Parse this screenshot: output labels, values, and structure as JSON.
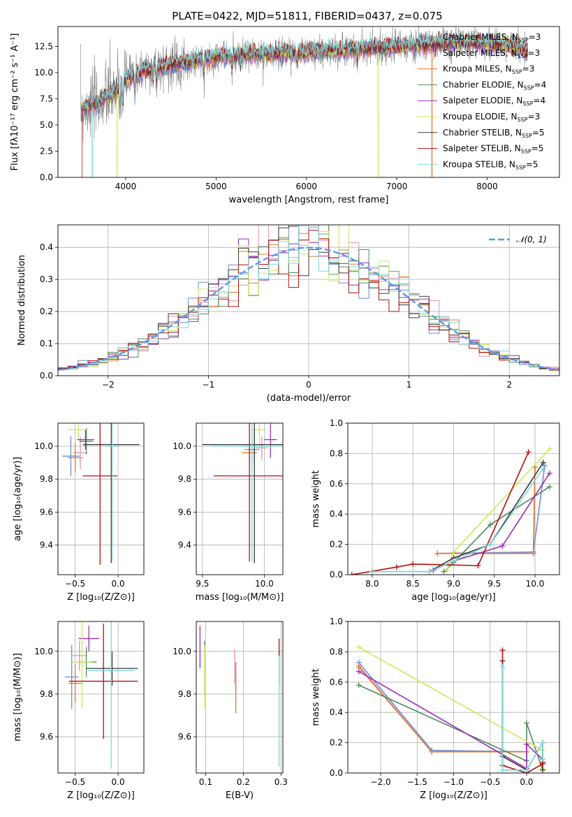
{
  "figure_title": "PLATE=0422, MJD=51811, FIBERID=0437, z=0.075",
  "colors": {
    "chabrier_miles": "#6a8ed8",
    "salpeter_miles": "#e58fb2",
    "kroupa_miles": "#e07b2c",
    "chabrier_elodie": "#4f8a5e",
    "salpeter_elodie": "#9a2fb8",
    "kroupa_elodie": "#cfe85a",
    "chabrier_stelib": "#3a3a3a",
    "salpeter_stelib": "#b01010",
    "kroupa_stelib": "#7fd8dc",
    "data": "#808080",
    "gaussian": "#6495ed",
    "grid": "#b0b0b0"
  },
  "chart_data": [
    {
      "id": "spectrum",
      "type": "line",
      "title": "PLATE=0422, MJD=51811, FIBERID=0437, z=0.075",
      "xlabel": "wavelength [Angstrom, rest frame]",
      "ylabel": "Flux [fλ10⁻¹⁷ erg cm⁻² s⁻¹ A⁻¹]",
      "xlim": [
        3250,
        8800
      ],
      "ylim": [
        0,
        14.4
      ],
      "xticks": [
        4000,
        5000,
        6000,
        7000,
        8000
      ],
      "yticks": [
        0.0,
        2.5,
        5.0,
        7.5,
        10.0,
        12.5
      ],
      "grid": false,
      "legend_position": "right",
      "continuum": {
        "x": [
          3500,
          3700,
          3900,
          4000,
          4200,
          4500,
          4800,
          5000,
          5300,
          5600,
          6000,
          6300,
          6600,
          6900,
          7200,
          7400,
          7700,
          8000,
          8300,
          8450
        ],
        "y": [
          6.5,
          7.2,
          8.3,
          9.3,
          10.2,
          10.8,
          11.2,
          11.5,
          11.7,
          11.8,
          12.0,
          12.1,
          12.3,
          12.4,
          12.6,
          12.7,
          12.9,
          12.8,
          12.5,
          12.0
        ]
      },
      "legend": [
        {
          "label": "Chabrier MILES, N",
          "sub": "SSP",
          "suffix": "=3",
          "color": "#6a8ed8"
        },
        {
          "label": "Salpeter MILES, N",
          "sub": "SSP",
          "suffix": "=3",
          "color": "#e58fb2"
        },
        {
          "label": "Kroupa MILES, N",
          "sub": "SSP",
          "suffix": "=3",
          "color": "#e07b2c"
        },
        {
          "label": "Chabrier ELODIE, N",
          "sub": "SSP",
          "suffix": "=4",
          "color": "#4f8a5e"
        },
        {
          "label": "Salpeter ELODIE, N",
          "sub": "SSP",
          "suffix": "=4",
          "color": "#9a2fb8"
        },
        {
          "label": "Kroupa ELODIE, N",
          "sub": "SSP",
          "suffix": "=3",
          "color": "#cfe85a"
        },
        {
          "label": "Chabrier STELIB, N",
          "sub": "SSP",
          "suffix": "=5",
          "color": "#3a3a3a"
        },
        {
          "label": "Salpeter STELIB, N",
          "sub": "SSP",
          "suffix": "=5",
          "color": "#b01010"
        },
        {
          "label": "Kroupa STELIB, N",
          "sub": "SSP",
          "suffix": "=5",
          "color": "#7fd8dc"
        }
      ]
    },
    {
      "id": "residuals",
      "type": "line",
      "xlabel": "(data-model)/error",
      "ylabel": "Normed distribution",
      "xlim": [
        -2.5,
        2.5
      ],
      "ylim": [
        0,
        0.47
      ],
      "xticks": [
        -2,
        -1,
        0,
        1,
        2
      ],
      "yticks": [
        0.0,
        0.1,
        0.2,
        0.3,
        0.4
      ],
      "grid": true,
      "legend_position": "top-right",
      "legend": [
        {
          "label": "𝒩(0, 1)",
          "color": "#6495ed"
        }
      ],
      "gaussian": {
        "mean": 0,
        "sigma": 1
      },
      "histogram_bin_width": 0.1
    },
    {
      "id": "age_vs_Z",
      "type": "scatter",
      "xlabel": "Z [log₁₀(Z/Z⊙)]",
      "ylabel": "age  [log₁₀(age/yr)]",
      "xlim": [
        -0.7,
        0.3
      ],
      "ylim": [
        9.22,
        10.14
      ],
      "xticks": [
        -0.5,
        0.0
      ],
      "yticks": [
        9.4,
        9.6,
        9.8,
        10.0
      ],
      "grid": true,
      "points": [
        {
          "model": "Chabrier MILES",
          "x": -0.55,
          "y": 9.94,
          "xerr": 0.1,
          "yerr": 0.12
        },
        {
          "model": "Salpeter MILES",
          "x": -0.44,
          "y": 9.96,
          "xerr": 0.08,
          "yerr": 0.1
        },
        {
          "model": "Kroupa MILES",
          "x": -0.5,
          "y": 9.93,
          "xerr": 0.09,
          "yerr": 0.09
        },
        {
          "model": "Chabrier ELODIE",
          "x": -0.37,
          "y": 10.03,
          "xerr": 0.08,
          "yerr": 0.08
        },
        {
          "model": "Salpeter ELODIE",
          "x": -0.38,
          "y": 10.04,
          "xerr": 0.1,
          "yerr": 0.06
        },
        {
          "model": "Kroupa ELODIE",
          "x": -0.46,
          "y": 10.1,
          "xerr": 0.12,
          "yerr": 0.05
        },
        {
          "model": "Chabrier STELIB",
          "x": -0.08,
          "y": 10.01,
          "xerr": 0.33,
          "yerr": 0.72
        },
        {
          "model": "Salpeter STELIB",
          "x": -0.21,
          "y": 9.82,
          "xerr": 0.2,
          "yerr": 0.54
        },
        {
          "model": "Kroupa STELIB",
          "x": -0.07,
          "y": 10.0,
          "xerr": 0.08,
          "yerr": 0.7
        }
      ]
    },
    {
      "id": "age_vs_mass",
      "type": "scatter",
      "xlabel": "mass [log₁₀(M/M⊙)]",
      "ylabel": "",
      "xlim": [
        9.45,
        10.15
      ],
      "ylim": [
        9.22,
        10.14
      ],
      "xticks": [
        9.5,
        10.0
      ],
      "yticks": [
        9.4,
        9.6,
        9.8,
        10.0
      ],
      "grid": true,
      "points": [
        {
          "model": "Chabrier MILES",
          "x": 9.9,
          "y": 9.98,
          "xerr": 0.06,
          "yerr": 0.08
        },
        {
          "model": "Salpeter MILES",
          "x": 9.98,
          "y": 9.99,
          "xerr": 0.05,
          "yerr": 0.07
        },
        {
          "model": "Kroupa MILES",
          "x": 9.88,
          "y": 9.96,
          "xerr": 0.06,
          "yerr": 0.06
        },
        {
          "model": "Chabrier ELODIE",
          "x": 9.92,
          "y": 10.0,
          "xerr": 0.08,
          "yerr": 0.09
        },
        {
          "model": "Salpeter ELODIE",
          "x": 10.05,
          "y": 10.04,
          "xerr": 0.05,
          "yerr": 0.11
        },
        {
          "model": "Kroupa ELODIE",
          "x": 9.96,
          "y": 10.1,
          "xerr": 0.06,
          "yerr": 0.1
        },
        {
          "model": "Chabrier STELIB",
          "x": 9.92,
          "y": 10.01,
          "xerr": 0.42,
          "yerr": 0.72
        },
        {
          "model": "Salpeter STELIB",
          "x": 9.88,
          "y": 9.82,
          "xerr": 0.29,
          "yerr": 0.52
        },
        {
          "model": "Kroupa STELIB",
          "x": 9.9,
          "y": 10.0,
          "xerr": 0.32,
          "yerr": 0.7
        }
      ]
    },
    {
      "id": "weight_vs_age",
      "type": "line",
      "xlabel": "age  [log₁₀(age/yr)]",
      "ylabel": "mass weight",
      "xlim": [
        7.7,
        10.3
      ],
      "ylim": [
        0,
        1.0
      ],
      "xticks": [
        8.0,
        8.5,
        9.0,
        9.5,
        10.0
      ],
      "yticks": [
        0.0,
        0.2,
        0.4,
        0.6,
        0.8,
        1.0
      ],
      "grid": true,
      "series": [
        {
          "model": "Chabrier MILES",
          "x": [
            8.8,
            9.98,
            10.12
          ],
          "y": [
            0.14,
            0.15,
            0.72
          ]
        },
        {
          "model": "Salpeter MILES",
          "x": [
            8.8,
            9.98,
            10.0
          ],
          "y": [
            0.14,
            0.14,
            0.71
          ]
        },
        {
          "model": "Kroupa MILES",
          "x": [
            8.8,
            9.98,
            10.0
          ],
          "y": [
            0.14,
            0.14,
            0.71
          ]
        },
        {
          "model": "Chabrier ELODIE",
          "x": [
            8.88,
            9.0,
            9.45,
            10.18
          ],
          "y": [
            0.02,
            0.08,
            0.33,
            0.58
          ]
        },
        {
          "model": "Salpeter ELODIE",
          "x": [
            8.75,
            9.0,
            9.6,
            10.18
          ],
          "y": [
            0.03,
            0.09,
            0.19,
            0.67
          ]
        },
        {
          "model": "Kroupa ELODIE",
          "x": [
            8.92,
            9.0,
            10.18
          ],
          "y": [
            0.03,
            0.15,
            0.83
          ]
        },
        {
          "model": "Chabrier STELIB",
          "x": [
            8.0,
            8.7,
            9.0,
            9.45,
            10.1
          ],
          "y": [
            0.02,
            0.02,
            0.11,
            0.2,
            0.74
          ]
        },
        {
          "model": "Salpeter STELIB",
          "x": [
            7.75,
            8.3,
            8.5,
            9.3,
            9.92
          ],
          "y": [
            0.0,
            0.05,
            0.07,
            0.06,
            0.81
          ]
        },
        {
          "model": "Kroupa STELIB",
          "x": [
            8.0,
            8.7,
            9.0,
            9.45,
            10.1
          ],
          "y": [
            0.02,
            0.02,
            0.09,
            0.2,
            0.7
          ]
        }
      ]
    },
    {
      "id": "mass_vs_Z",
      "type": "scatter",
      "xlabel": "Z [log₁₀(Z/Z⊙)]",
      "ylabel": "mass [log₁₀(M/M⊙)]",
      "xlim": [
        -0.7,
        0.3
      ],
      "ylim": [
        9.43,
        10.14
      ],
      "xticks": [
        -0.5,
        0.0
      ],
      "yticks": [
        9.6,
        9.8,
        10.0
      ],
      "grid": true,
      "points": [
        {
          "model": "Chabrier MILES",
          "x": -0.54,
          "y": 9.88,
          "xerr": 0.08,
          "yerr": 0.15
        },
        {
          "model": "Salpeter MILES",
          "x": -0.45,
          "y": 9.98,
          "xerr": 0.08,
          "yerr": 0.07
        },
        {
          "model": "Kroupa MILES",
          "x": -0.5,
          "y": 9.85,
          "xerr": 0.08,
          "yerr": 0.09
        },
        {
          "model": "Chabrier ELODIE",
          "x": -0.37,
          "y": 9.95,
          "xerr": 0.12,
          "yerr": 0.07
        },
        {
          "model": "Salpeter ELODIE",
          "x": -0.34,
          "y": 10.06,
          "xerr": 0.12,
          "yerr": 0.06
        },
        {
          "model": "Kroupa ELODIE",
          "x": -0.42,
          "y": 9.95,
          "xerr": 0.12,
          "yerr": 0.22
        },
        {
          "model": "Chabrier STELIB",
          "x": -0.07,
          "y": 9.92,
          "xerr": 0.3,
          "yerr": 0.08
        },
        {
          "model": "Salpeter STELIB",
          "x": -0.17,
          "y": 9.86,
          "xerr": 0.4,
          "yerr": 0.27
        },
        {
          "model": "Kroupa STELIB",
          "x": -0.08,
          "y": 9.91,
          "xerr": 0.27,
          "yerr": 0.46
        }
      ]
    },
    {
      "id": "mass_vs_ebv",
      "type": "scatter",
      "xlabel": "E(B-V)",
      "ylabel": "",
      "xlim": [
        0.075,
        0.305
      ],
      "ylim": [
        9.43,
        10.14
      ],
      "xticks": [
        0.1,
        0.2,
        0.3
      ],
      "yticks": [
        9.6,
        9.8,
        10.0
      ],
      "grid": true,
      "points": [
        {
          "model": "Chabrier MILES",
          "x": 0.18,
          "y": 9.88,
          "xerr": 0.0,
          "yerr": 0.07
        },
        {
          "model": "Salpeter MILES",
          "x": 0.177,
          "y": 9.93,
          "xerr": 0.0,
          "yerr": 0.08
        },
        {
          "model": "Kroupa MILES",
          "x": 0.18,
          "y": 9.82,
          "xerr": 0.0,
          "yerr": 0.11
        },
        {
          "model": "Chabrier ELODIE",
          "x": 0.097,
          "y": 9.93,
          "xerr": 0.0,
          "yerr": 0.12
        },
        {
          "model": "Salpeter ELODIE",
          "x": 0.085,
          "y": 10.02,
          "xerr": 0.0,
          "yerr": 0.1
        },
        {
          "model": "Kroupa ELODIE",
          "x": 0.097,
          "y": 9.88,
          "xerr": 0.0,
          "yerr": 0.15
        },
        {
          "model": "Chabrier STELIB",
          "x": 0.295,
          "y": 9.92,
          "xerr": 0.0,
          "yerr": 0.08
        },
        {
          "model": "Salpeter STELIB",
          "x": 0.295,
          "y": 10.02,
          "xerr": 0.0,
          "yerr": 0.04
        },
        {
          "model": "Kroupa STELIB",
          "x": 0.295,
          "y": 9.72,
          "xerr": 0.0,
          "yerr": 0.26
        }
      ]
    },
    {
      "id": "weight_vs_Z",
      "type": "line",
      "xlabel": "Z [log₁₀(Z/Z⊙)]",
      "ylabel": "mass weight",
      "xlim": [
        -2.45,
        0.45
      ],
      "ylim": [
        0,
        1.0
      ],
      "xticks": [
        -2.0,
        -1.5,
        -1.0,
        -0.5,
        0.0
      ],
      "yticks": [
        0.0,
        0.2,
        0.4,
        0.6,
        0.8,
        1.0
      ],
      "grid": true,
      "series": [
        {
          "model": "Chabrier MILES",
          "x": [
            -2.3,
            -1.3,
            0.0
          ],
          "y": [
            0.73,
            0.15,
            0.14
          ]
        },
        {
          "model": "Salpeter MILES",
          "x": [
            -2.3,
            -1.3,
            0.0
          ],
          "y": [
            0.71,
            0.14,
            0.14
          ]
        },
        {
          "model": "Kroupa MILES",
          "x": [
            -2.3,
            -1.3,
            0.0
          ],
          "y": [
            0.7,
            0.14,
            0.14
          ]
        },
        {
          "model": "Chabrier ELODIE",
          "x": [
            -2.3,
            0.0,
            0.0,
            0.22
          ],
          "y": [
            0.58,
            0.08,
            0.33,
            0.02
          ]
        },
        {
          "model": "Salpeter ELODIE",
          "x": [
            -2.3,
            0.0,
            0.0,
            0.22
          ],
          "y": [
            0.67,
            0.03,
            0.19,
            0.09
          ]
        },
        {
          "model": "Kroupa ELODIE",
          "x": [
            -2.3,
            0.22,
            0.22
          ],
          "y": [
            0.83,
            0.15,
            0.03
          ]
        },
        {
          "model": "Chabrier STELIB",
          "x": [
            -0.33,
            -0.33,
            0.0,
            0.22,
            0.22
          ],
          "y": [
            0.74,
            0.11,
            0.02,
            0.2,
            0.02
          ]
        },
        {
          "model": "Salpeter STELIB",
          "x": [
            -0.33,
            -0.33,
            0.0,
            0.22,
            0.22
          ],
          "y": [
            0.81,
            0.05,
            0.0,
            0.06,
            0.07
          ]
        },
        {
          "model": "Kroupa STELIB",
          "x": [
            -0.33,
            -0.33,
            0.0,
            0.22,
            0.22
          ],
          "y": [
            0.7,
            0.02,
            0.02,
            0.2,
            0.09
          ]
        }
      ]
    }
  ]
}
